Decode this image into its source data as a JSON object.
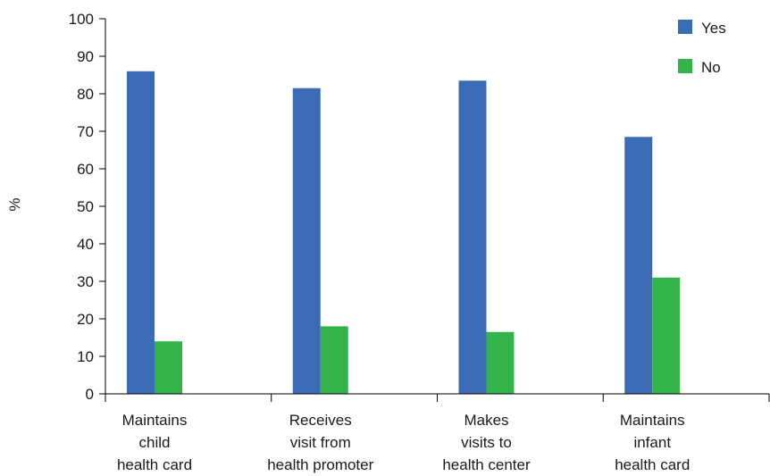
{
  "chart_data": {
    "type": "bar",
    "title": "",
    "xlabel": "",
    "ylabel": "%",
    "ylim": [
      0,
      100
    ],
    "yticks": [
      0,
      10,
      20,
      30,
      40,
      50,
      60,
      70,
      80,
      90,
      100
    ],
    "grid": false,
    "legend_position": "top-right",
    "categories": [
      [
        "Maintains",
        "child",
        "health card"
      ],
      [
        "Receives",
        "visit from",
        "health promoter"
      ],
      [
        "Makes",
        "visits to",
        "health center"
      ],
      [
        "Maintains",
        "infant",
        "health card"
      ]
    ],
    "series": [
      {
        "name": "Yes",
        "color": "#3c6bb5",
        "values": [
          86,
          81.5,
          83.5,
          68.5
        ]
      },
      {
        "name": "No",
        "color": "#33b34a",
        "values": [
          14,
          18,
          16.5,
          31
        ]
      }
    ]
  }
}
